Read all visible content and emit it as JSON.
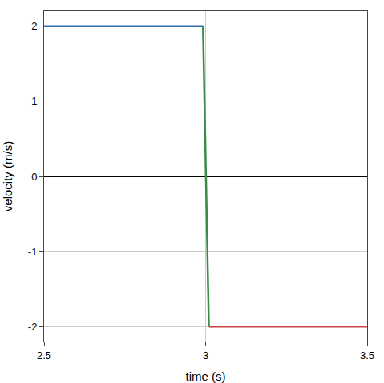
{
  "chart_data": {
    "type": "line",
    "x_label": "time (s)",
    "y_label": "velocity (m/s)",
    "xlim": [
      2.5,
      3.5
    ],
    "xticks": [
      2.5,
      3,
      3.5
    ],
    "ylim": [
      -2.2,
      2.2
    ],
    "yticks": [
      -2,
      -1,
      0,
      1,
      2
    ],
    "grid": true,
    "series": [
      {
        "color": "#2d70b3",
        "x": [
          2.5,
          2.992
        ],
        "values": [
          2,
          2
        ]
      },
      {
        "color": "#388c46",
        "x": [
          2.992,
          3.01
        ],
        "values": [
          2,
          -2
        ]
      },
      {
        "color": "#c74440",
        "x": [
          3.01,
          3.5
        ],
        "values": [
          -2,
          -2
        ]
      }
    ]
  }
}
